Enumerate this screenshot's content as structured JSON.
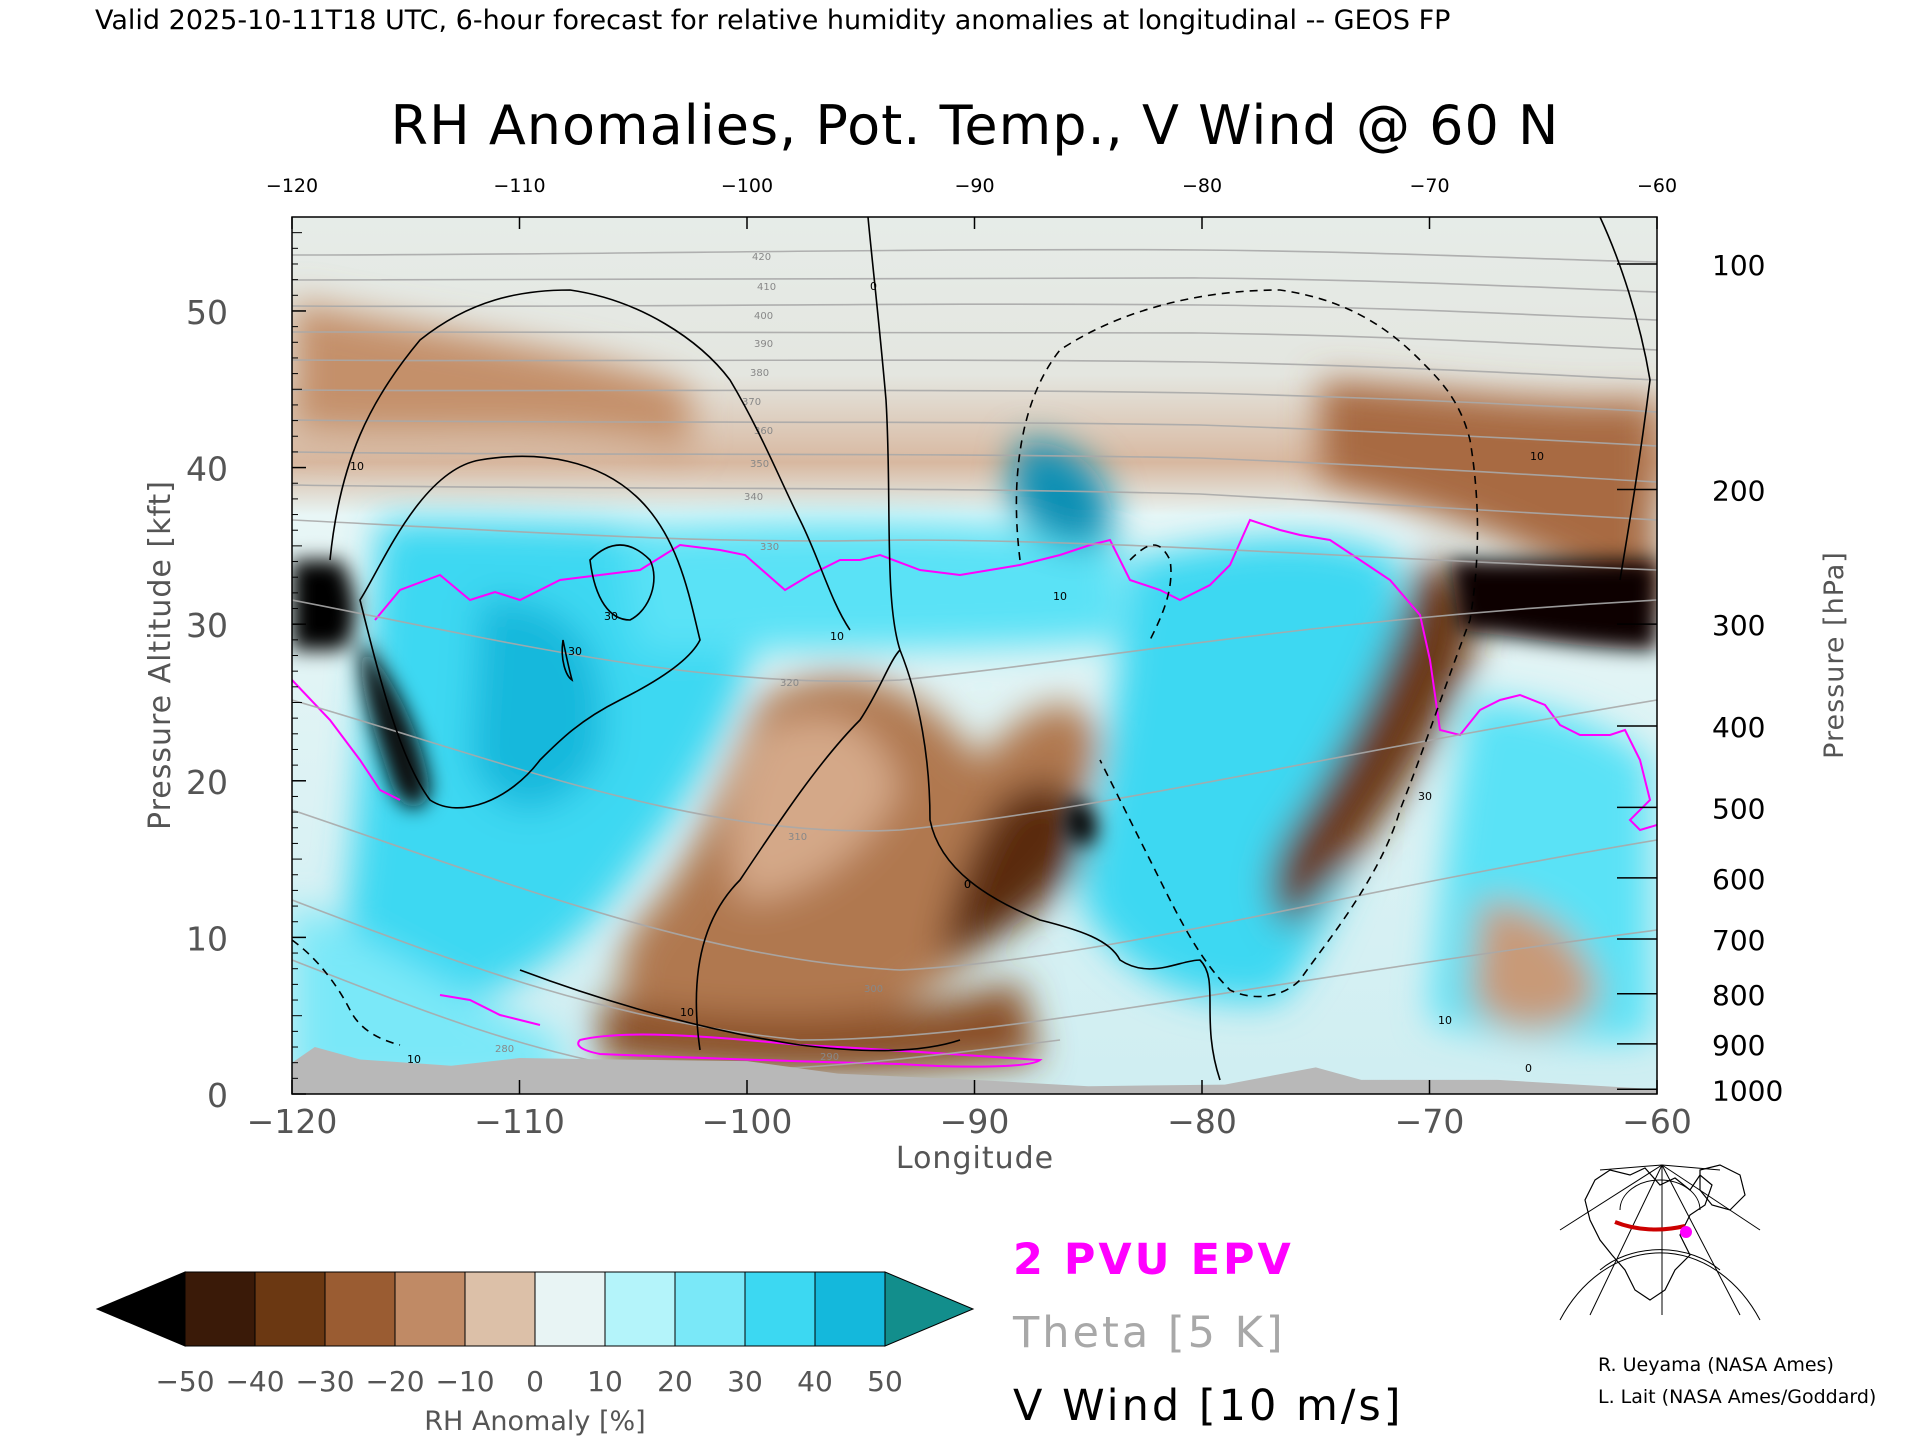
{
  "header": {
    "valid_line": "Valid 2025-10-11T18 UTC, 6-hour forecast for relative humidity anomalies at longitudinal -- GEOS FP"
  },
  "chart_data": {
    "type": "heatmap",
    "title": "RH Anomalies, Pot. Temp., V Wind @ 60 N",
    "xlabel": "Longitude",
    "ylabel_left": "Pressure Altitude [kft]",
    "ylabel_right": "Pressure [hPa]",
    "xlim": [
      -120,
      -60
    ],
    "ylim_kft": [
      0,
      56
    ],
    "x_ticks": [
      -120,
      -110,
      -100,
      -90,
      -80,
      -70,
      -60
    ],
    "x_tick_labels": [
      "−120",
      "−110",
      "−100",
      "−90",
      "−80",
      "−70",
      "−60"
    ],
    "top_x_tick_labels": [
      "−120",
      "−110",
      "−100",
      "−90",
      "−80",
      "−70",
      "−60"
    ],
    "y_ticks_kft": [
      0,
      10,
      20,
      30,
      40,
      50
    ],
    "pressure_ticks": [
      {
        "hpa": 100,
        "kft": 53
      },
      {
        "hpa": 200,
        "kft": 38.6
      },
      {
        "hpa": 300,
        "kft": 30
      },
      {
        "hpa": 400,
        "kft": 23.5
      },
      {
        "hpa": 500,
        "kft": 18.3
      },
      {
        "hpa": 600,
        "kft": 13.8
      },
      {
        "hpa": 700,
        "kft": 9.9
      },
      {
        "hpa": 800,
        "kft": 6.4
      },
      {
        "hpa": 900,
        "kft": 3.2
      },
      {
        "hpa": 1000,
        "kft": 0.3
      }
    ],
    "grid": false,
    "colorbar": {
      "label": "RH Anomaly [%]",
      "ticks": [
        -50,
        -40,
        -30,
        -20,
        -10,
        0,
        10,
        20,
        30,
        40,
        50
      ],
      "tick_labels": [
        "−50",
        "−40",
        "−30",
        "−20",
        "−10",
        "0",
        "10",
        "20",
        "30",
        "40",
        "50"
      ],
      "colors": [
        "#000000",
        "#3a1a08",
        "#6b3812",
        "#9a5c32",
        "#c08a65",
        "#dcc0a8",
        "#e8f4f4",
        "#b4f4fa",
        "#7ae8f8",
        "#3cd8f2",
        "#14b8dc",
        "#0a8fb4",
        "#128e8c"
      ]
    },
    "legend": {
      "epv": {
        "label": "2 PVU EPV",
        "color": "#ff00ff"
      },
      "theta": {
        "label": "Theta [5 K]",
        "color": "#a8a8a8"
      },
      "vwind": {
        "label": "V Wind [10 m/s]",
        "color": "#000000"
      }
    },
    "rh_anomaly_regions": [
      {
        "lon": -118,
        "kft": 31,
        "value": -55
      },
      {
        "lon": -115,
        "kft": 21,
        "value": -55
      },
      {
        "lon": -67,
        "kft": 30,
        "value": -55
      },
      {
        "lon": -86,
        "kft": 17,
        "value": -55
      },
      {
        "lon": -110,
        "kft": 22,
        "value": 35
      },
      {
        "lon": -88,
        "kft": 38,
        "value": 45
      },
      {
        "lon": -80,
        "kft": 20,
        "value": 35
      },
      {
        "lon": -98,
        "kft": 12,
        "value": -25
      }
    ],
    "theta_contour_labels": [
      "420",
      "410",
      "400",
      "390",
      "380",
      "370",
      "360",
      "350",
      "340",
      "330",
      "320",
      "310",
      "300",
      "290",
      "280"
    ],
    "v_wind_contour_labels": [
      "10",
      "0",
      "10",
      "30",
      "30",
      "0",
      "10",
      "10",
      "0",
      "10",
      "10",
      "30",
      "10",
      "0"
    ],
    "surface_color": "#b8b8b8",
    "terrain_kft": [
      {
        "lon": -120,
        "kft": 2.0
      },
      {
        "lon": -119,
        "kft": 3.0
      },
      {
        "lon": -117,
        "kft": 2.2
      },
      {
        "lon": -113,
        "kft": 1.8
      },
      {
        "lon": -110,
        "kft": 2.3
      },
      {
        "lon": -106,
        "kft": 2.2
      },
      {
        "lon": -100,
        "kft": 2.1
      },
      {
        "lon": -96,
        "kft": 1.3
      },
      {
        "lon": -90,
        "kft": 0.9
      },
      {
        "lon": -85,
        "kft": 0.5
      },
      {
        "lon": -79,
        "kft": 0.6
      },
      {
        "lon": -75,
        "kft": 1.7
      },
      {
        "lon": -73,
        "kft": 0.9
      },
      {
        "lon": -67,
        "kft": 0.9
      },
      {
        "lon": -60,
        "kft": 0.3
      }
    ]
  },
  "inset_map": {
    "track_color": "#cc0000",
    "marker_color": "#ff00ff"
  },
  "credits": [
    "R. Ueyama (NASA Ames)",
    "L. Lait (NASA Ames/Goddard)"
  ]
}
